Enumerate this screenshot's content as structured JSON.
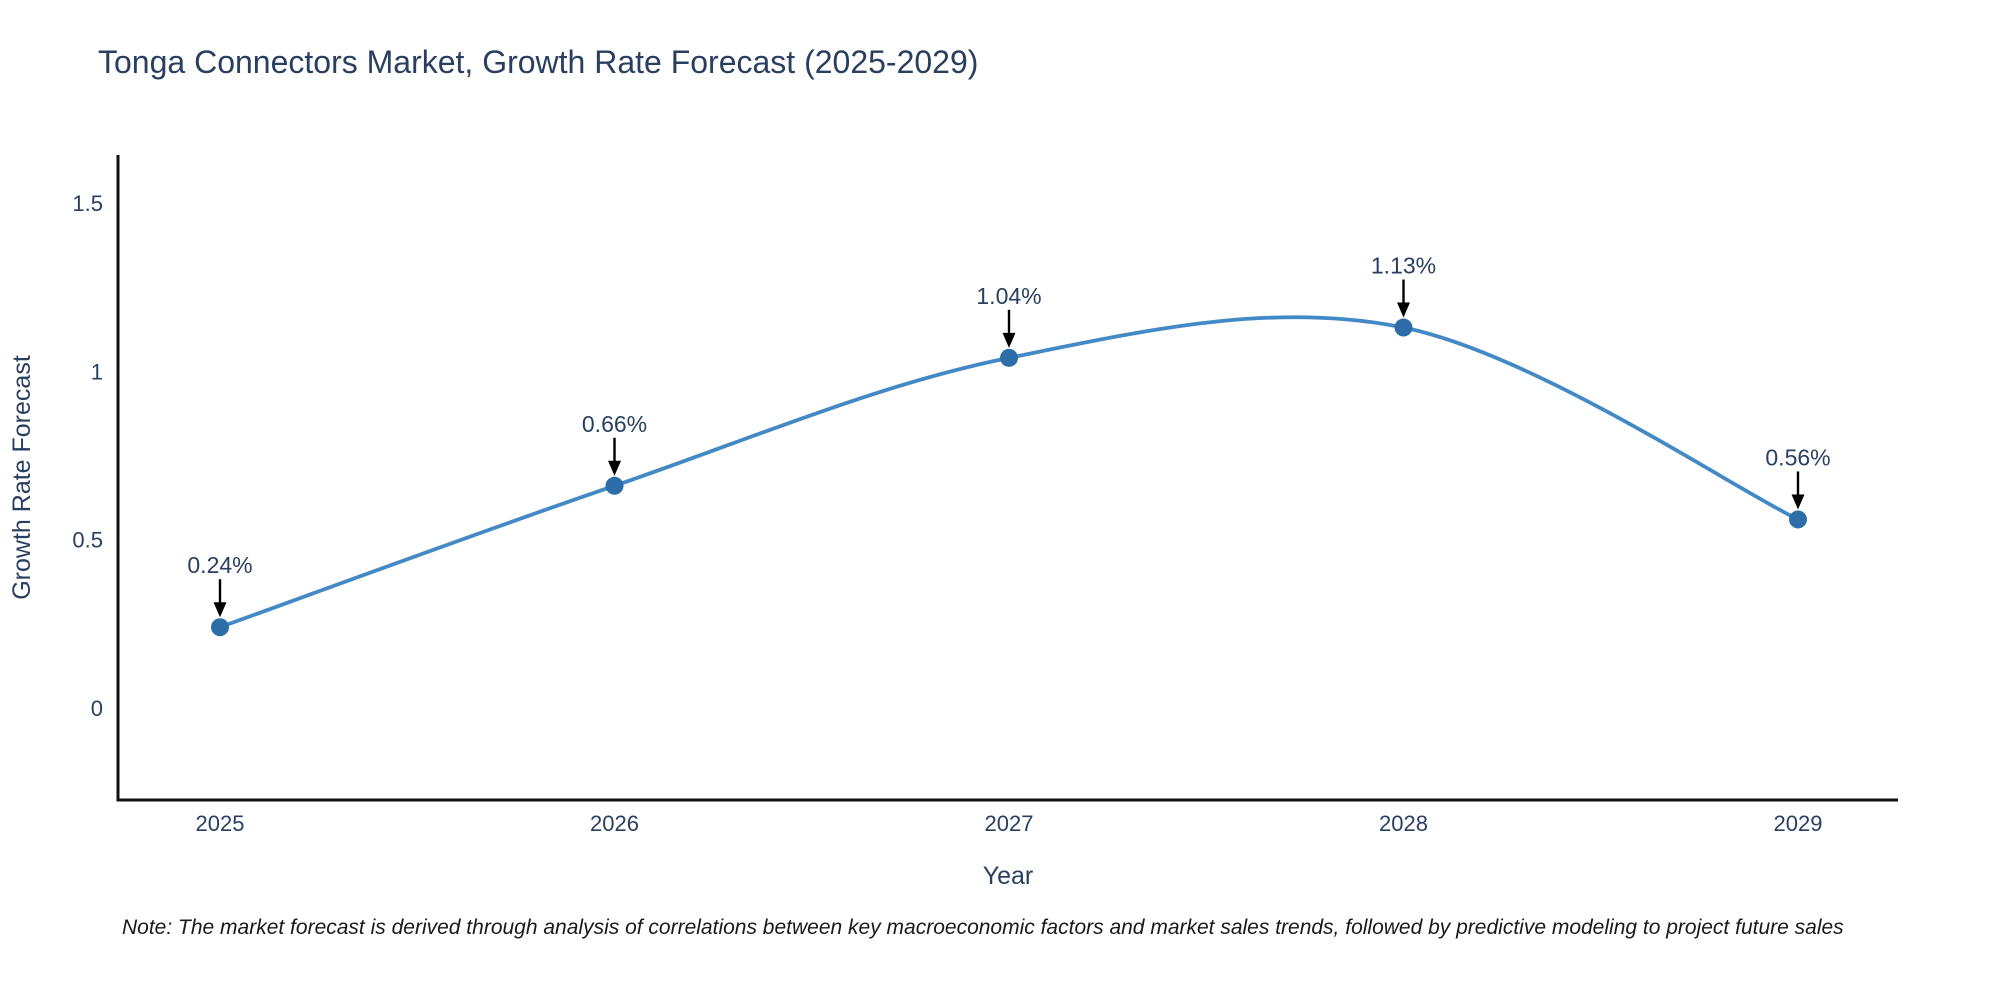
{
  "title": "Tonga Connectors Market, Growth Rate Forecast (2025-2029)",
  "note": "Note: The market forecast is derived through analysis of correlations between key macroeconomic factors and market sales trends, followed by predictive modeling to project future sales",
  "chart_data": {
    "type": "line",
    "title": "Tonga Connectors Market, Growth Rate Forecast (2025-2029)",
    "xlabel": "Year",
    "ylabel": "Growth Rate Forecast",
    "categories": [
      "2025",
      "2026",
      "2027",
      "2028",
      "2029"
    ],
    "series": [
      {
        "name": "Growth Rate Forecast",
        "values": [
          0.24,
          0.66,
          1.04,
          1.13,
          0.56
        ],
        "point_labels": [
          "0.24%",
          "0.66%",
          "1.04%",
          "1.13%",
          "0.56%"
        ]
      }
    ],
    "line_shape": "spline",
    "markers": true,
    "grid": false,
    "legend_position": "none",
    "ylim": [
      -0.27,
      1.64
    ],
    "yticks": [
      0,
      0.5,
      1,
      1.5
    ],
    "ytick_labels": [
      "0",
      "0.5",
      "1",
      "1.5"
    ],
    "colors": {
      "line": "#4389c5",
      "marker": "#2d6da8",
      "arrow": "#000000",
      "text": "#2a3f5f",
      "axis": "#101010"
    }
  }
}
